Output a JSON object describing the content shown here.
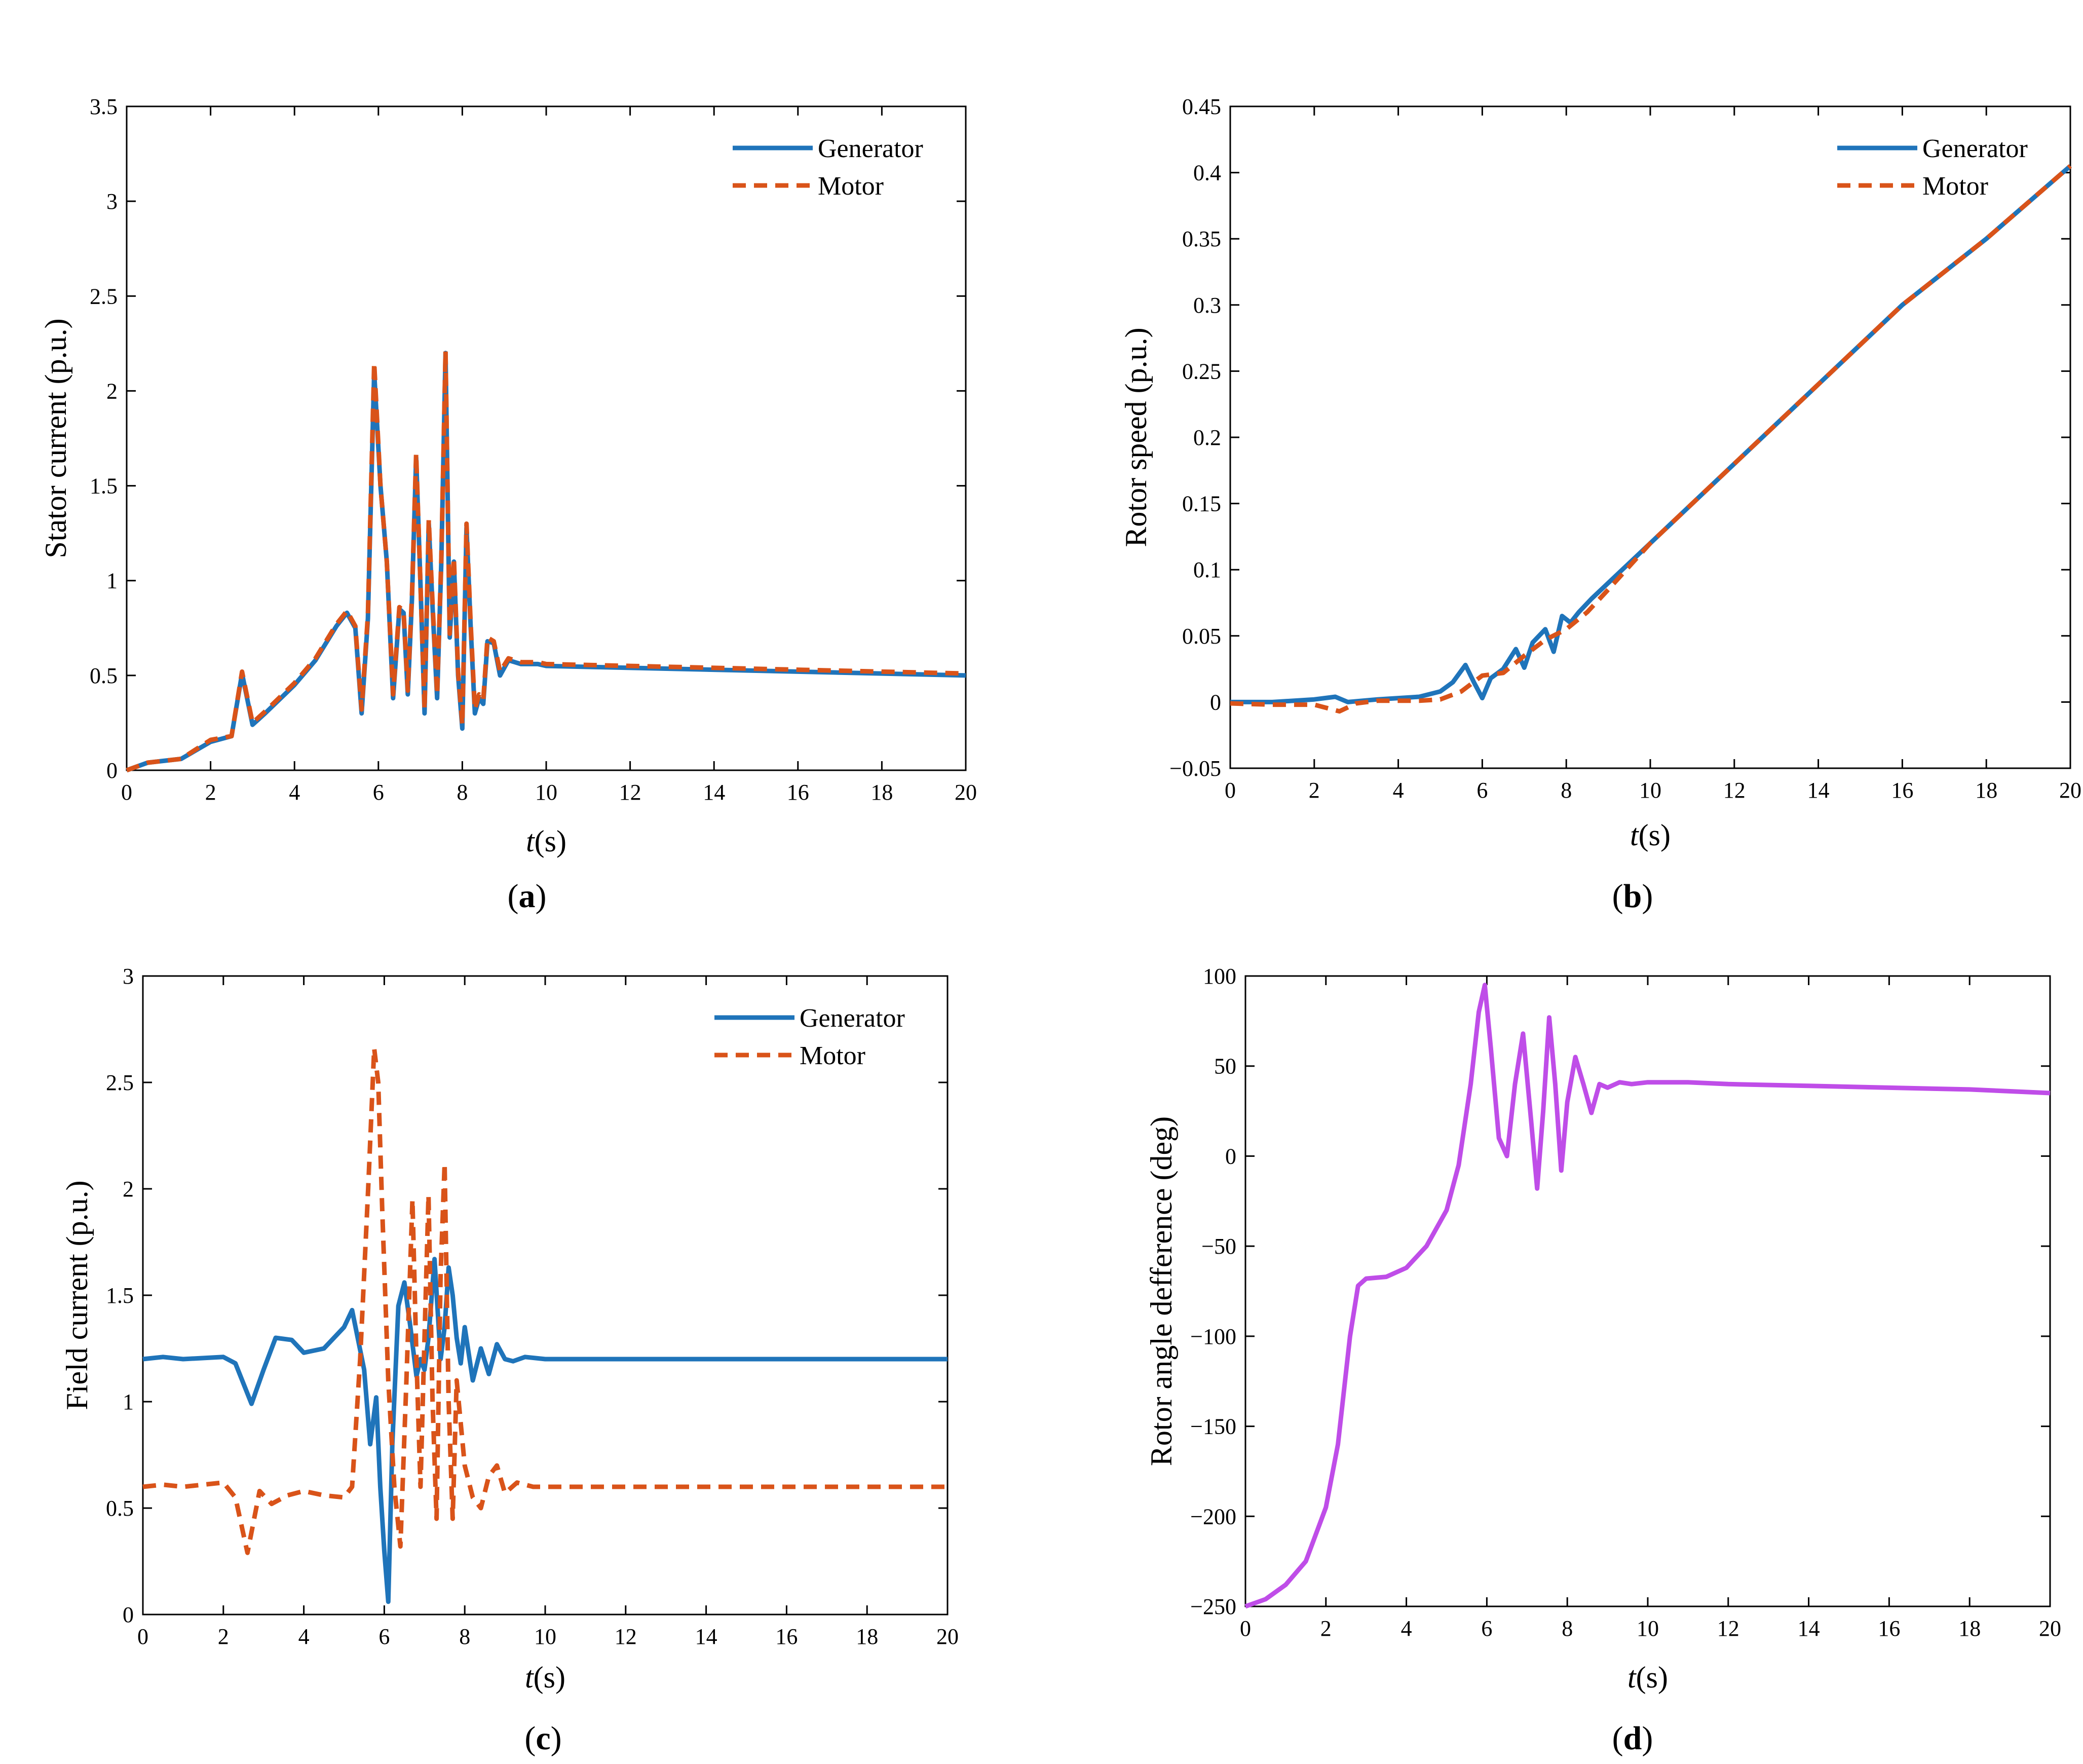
{
  "figure": {
    "colors": {
      "generator": "#1f74ba",
      "motor": "#d95319",
      "difference": "#bf4de8"
    }
  },
  "chart_data": [
    {
      "id": "a",
      "type": "line",
      "panel_label": {
        "open": "(",
        "letter": "a",
        "close": ")"
      },
      "xlabel": {
        "var": "t",
        "unit": "(s)"
      },
      "ylabel": "Stator current (p.u.)",
      "xlim": [
        0,
        20
      ],
      "ylim": [
        0,
        3.5
      ],
      "xticks": [
        0,
        2,
        4,
        6,
        8,
        10,
        12,
        14,
        16,
        18,
        20
      ],
      "yticks": [
        0,
        0.5,
        1,
        1.5,
        2,
        2.5,
        3,
        3.5
      ],
      "ytick_labels": [
        "0",
        "0.5",
        "1",
        "1.5",
        "2",
        "2.5",
        "3",
        "3.5"
      ],
      "legend_position": "top-right",
      "series": [
        {
          "name": "Generator",
          "style": "solid",
          "color": "#1f74ba",
          "x": [
            0,
            0.5,
            1.3,
            2,
            2.5,
            2.75,
            3.0,
            3.3,
            4,
            4.5,
            5.0,
            5.25,
            5.45,
            5.6,
            5.75,
            5.9,
            6.05,
            6.2,
            6.35,
            6.5,
            6.6,
            6.7,
            6.8,
            6.9,
            7.0,
            7.1,
            7.2,
            7.3,
            7.4,
            7.5,
            7.6,
            7.7,
            7.8,
            7.9,
            8.0,
            8.1,
            8.2,
            8.3,
            8.4,
            8.5,
            8.6,
            8.75,
            8.9,
            9.1,
            9.4,
            9.8,
            10,
            12,
            16,
            20
          ],
          "y": [
            0,
            0.04,
            0.06,
            0.15,
            0.18,
            0.51,
            0.24,
            0.3,
            0.45,
            0.58,
            0.76,
            0.83,
            0.75,
            0.3,
            0.8,
            2.1,
            1.5,
            1.1,
            0.38,
            0.85,
            0.83,
            0.4,
            0.9,
            1.65,
            1.0,
            0.3,
            1.3,
            0.82,
            0.38,
            1.1,
            2.2,
            0.7,
            1.1,
            0.5,
            0.22,
            1.28,
            0.75,
            0.3,
            0.38,
            0.35,
            0.68,
            0.67,
            0.5,
            0.58,
            0.56,
            0.56,
            0.55,
            0.54,
            0.52,
            0.5
          ]
        },
        {
          "name": "Motor",
          "style": "dashed",
          "color": "#d95319",
          "x": [
            0,
            0.5,
            1.3,
            2,
            2.5,
            2.75,
            3.0,
            3.3,
            4,
            4.5,
            5.0,
            5.25,
            5.45,
            5.6,
            5.75,
            5.9,
            6.05,
            6.2,
            6.35,
            6.5,
            6.6,
            6.7,
            6.8,
            6.9,
            7.0,
            7.1,
            7.2,
            7.3,
            7.4,
            7.5,
            7.6,
            7.7,
            7.8,
            7.9,
            8.0,
            8.1,
            8.2,
            8.3,
            8.4,
            8.5,
            8.6,
            8.75,
            8.9,
            9.1,
            9.4,
            9.8,
            10,
            12,
            16,
            20
          ],
          "y": [
            0,
            0.04,
            0.06,
            0.16,
            0.18,
            0.52,
            0.25,
            0.31,
            0.46,
            0.59,
            0.77,
            0.84,
            0.76,
            0.32,
            0.82,
            2.15,
            1.5,
            1.1,
            0.4,
            0.86,
            0.84,
            0.42,
            0.92,
            1.67,
            1.0,
            0.32,
            1.32,
            0.84,
            0.4,
            1.12,
            2.21,
            0.72,
            1.12,
            0.52,
            0.24,
            1.3,
            0.77,
            0.32,
            0.4,
            0.37,
            0.7,
            0.68,
            0.52,
            0.59,
            0.57,
            0.57,
            0.56,
            0.55,
            0.53,
            0.51
          ]
        }
      ]
    },
    {
      "id": "b",
      "type": "line",
      "panel_label": {
        "open": "(",
        "letter": "b",
        "close": ")"
      },
      "xlabel": {
        "var": "t",
        "unit": "(s)"
      },
      "ylabel": "Rotor speed (p.u.)",
      "xlim": [
        0,
        20
      ],
      "ylim": [
        -0.05,
        0.45
      ],
      "xticks": [
        0,
        2,
        4,
        6,
        8,
        10,
        12,
        14,
        16,
        18,
        20
      ],
      "yticks": [
        -0.05,
        0,
        0.05,
        0.1,
        0.15,
        0.2,
        0.25,
        0.3,
        0.35,
        0.4,
        0.45
      ],
      "ytick_labels": [
        "−0.05",
        "0",
        "0.05",
        "0.1",
        "0.15",
        "0.2",
        "0.25",
        "0.3",
        "0.35",
        "0.4",
        "0.45"
      ],
      "legend_position": "top-right",
      "series": [
        {
          "name": "Generator",
          "style": "solid",
          "color": "#1f74ba",
          "x": [
            0,
            1,
            2,
            2.5,
            2.8,
            3.5,
            4.5,
            5,
            5.3,
            5.6,
            5.8,
            6.0,
            6.2,
            6.5,
            6.8,
            7.0,
            7.2,
            7.5,
            7.7,
            7.9,
            8.1,
            8.3,
            8.6,
            9,
            10,
            12,
            14,
            16,
            18,
            20
          ],
          "y": [
            0,
            0,
            0.002,
            0.004,
            0,
            0.002,
            0.004,
            0.008,
            0.015,
            0.028,
            0.015,
            0.003,
            0.018,
            0.025,
            0.04,
            0.026,
            0.045,
            0.055,
            0.038,
            0.065,
            0.06,
            0.068,
            0.078,
            0.09,
            0.12,
            0.18,
            0.24,
            0.3,
            0.35,
            0.405
          ]
        },
        {
          "name": "Motor",
          "style": "dashed",
          "color": "#d95319",
          "x": [
            0,
            1,
            2,
            2.6,
            3.0,
            3.5,
            4.5,
            5,
            5.5,
            6.0,
            6.5,
            7.0,
            7.5,
            8.0,
            8.5,
            9,
            10,
            12,
            14,
            16,
            18,
            20
          ],
          "y": [
            -0.001,
            -0.002,
            -0.002,
            -0.007,
            -0.001,
            0.001,
            0.001,
            0.002,
            0.008,
            0.02,
            0.022,
            0.035,
            0.047,
            0.055,
            0.068,
            0.085,
            0.12,
            0.18,
            0.24,
            0.3,
            0.35,
            0.405
          ]
        }
      ]
    },
    {
      "id": "c",
      "type": "line",
      "panel_label": {
        "open": "(",
        "letter": "c",
        "close": ")"
      },
      "xlabel": {
        "var": "t",
        "unit": "(s)"
      },
      "ylabel": "Field current (p.u.)",
      "xlim": [
        0,
        20
      ],
      "ylim": [
        0,
        3
      ],
      "xticks": [
        0,
        2,
        4,
        6,
        8,
        10,
        12,
        14,
        16,
        18,
        20
      ],
      "yticks": [
        0,
        0.5,
        1,
        1.5,
        2,
        2.5,
        3
      ],
      "ytick_labels": [
        "0",
        "0.5",
        "1",
        "1.5",
        "2",
        "2.5",
        "3"
      ],
      "legend_position": "top-right",
      "series": [
        {
          "name": "Generator",
          "style": "solid",
          "color": "#1f74ba",
          "x": [
            0,
            0.5,
            1,
            2,
            2.3,
            2.7,
            3.0,
            3.3,
            3.7,
            4.0,
            4.5,
            5.0,
            5.2,
            5.5,
            5.65,
            5.8,
            5.9,
            6.0,
            6.1,
            6.2,
            6.35,
            6.5,
            6.65,
            6.8,
            6.9,
            7.0,
            7.1,
            7.25,
            7.4,
            7.5,
            7.6,
            7.7,
            7.8,
            7.9,
            8.0,
            8.2,
            8.4,
            8.6,
            8.8,
            9.0,
            9.2,
            9.5,
            10,
            20
          ],
          "y": [
            1.2,
            1.21,
            1.2,
            1.21,
            1.18,
            0.99,
            1.15,
            1.3,
            1.29,
            1.23,
            1.25,
            1.35,
            1.43,
            1.15,
            0.8,
            1.02,
            0.6,
            0.3,
            0.06,
            0.8,
            1.45,
            1.56,
            1.35,
            1.12,
            1.2,
            1.15,
            1.3,
            1.67,
            1.2,
            1.35,
            1.63,
            1.5,
            1.3,
            1.18,
            1.35,
            1.1,
            1.25,
            1.13,
            1.27,
            1.2,
            1.19,
            1.21,
            1.2,
            1.2
          ]
        },
        {
          "name": "Motor",
          "style": "dashed",
          "color": "#d95319",
          "x": [
            0,
            0.5,
            1,
            2,
            2.3,
            2.6,
            2.9,
            3.2,
            3.6,
            4.0,
            4.5,
            5.0,
            5.2,
            5.4,
            5.6,
            5.75,
            5.85,
            5.95,
            6.1,
            6.25,
            6.4,
            6.55,
            6.7,
            6.8,
            6.9,
            7.0,
            7.1,
            7.2,
            7.3,
            7.4,
            7.5,
            7.6,
            7.7,
            7.8,
            8.0,
            8.2,
            8.4,
            8.6,
            8.8,
            9.0,
            9.3,
            9.7,
            10,
            20
          ],
          "y": [
            0.6,
            0.61,
            0.6,
            0.62,
            0.55,
            0.29,
            0.58,
            0.52,
            0.56,
            0.58,
            0.56,
            0.55,
            0.6,
            1.2,
            2.0,
            2.66,
            2.5,
            1.9,
            1.1,
            0.6,
            0.32,
            1.1,
            1.95,
            1.2,
            0.6,
            1.3,
            1.97,
            1.0,
            0.45,
            1.6,
            2.12,
            1.0,
            0.45,
            1.1,
            0.7,
            0.55,
            0.5,
            0.65,
            0.7,
            0.57,
            0.62,
            0.6,
            0.6,
            0.6
          ]
        }
      ]
    },
    {
      "id": "d",
      "type": "line",
      "panel_label": {
        "open": "(",
        "letter": "d",
        "close": ")"
      },
      "xlabel": {
        "var": "t",
        "unit": "(s)"
      },
      "ylabel": "Rotor angle defference (deg)",
      "xlim": [
        0,
        20
      ],
      "ylim": [
        -250,
        100
      ],
      "xticks": [
        0,
        2,
        4,
        6,
        8,
        10,
        12,
        14,
        16,
        18,
        20
      ],
      "yticks": [
        -250,
        -200,
        -150,
        -100,
        -50,
        0,
        50,
        100
      ],
      "ytick_labels": [
        "−250",
        "−200",
        "−150",
        "−100",
        "−50",
        "0",
        "50",
        "100"
      ],
      "legend_position": "none",
      "series": [
        {
          "name": "Rotor angle difference",
          "style": "solid",
          "color": "#bf4de8",
          "x": [
            0,
            0.5,
            1.0,
            1.5,
            2.0,
            2.3,
            2.6,
            2.8,
            3.0,
            3.5,
            4.0,
            4.5,
            5.0,
            5.3,
            5.6,
            5.8,
            5.95,
            6.1,
            6.3,
            6.5,
            6.7,
            6.9,
            7.1,
            7.25,
            7.4,
            7.55,
            7.7,
            7.85,
            8.0,
            8.2,
            8.4,
            8.6,
            8.8,
            9.0,
            9.3,
            9.6,
            10,
            11,
            12,
            14,
            16,
            18,
            20
          ],
          "y": [
            -250,
            -246,
            -238,
            -225,
            -195,
            -160,
            -100,
            -72,
            -68,
            -67,
            -62,
            -50,
            -30,
            -5,
            40,
            80,
            95,
            60,
            10,
            0,
            40,
            68,
            20,
            -18,
            25,
            77,
            40,
            -8,
            30,
            55,
            40,
            24,
            40,
            38,
            41,
            40,
            41,
            41,
            40,
            39,
            38,
            37,
            35
          ]
        }
      ]
    }
  ]
}
